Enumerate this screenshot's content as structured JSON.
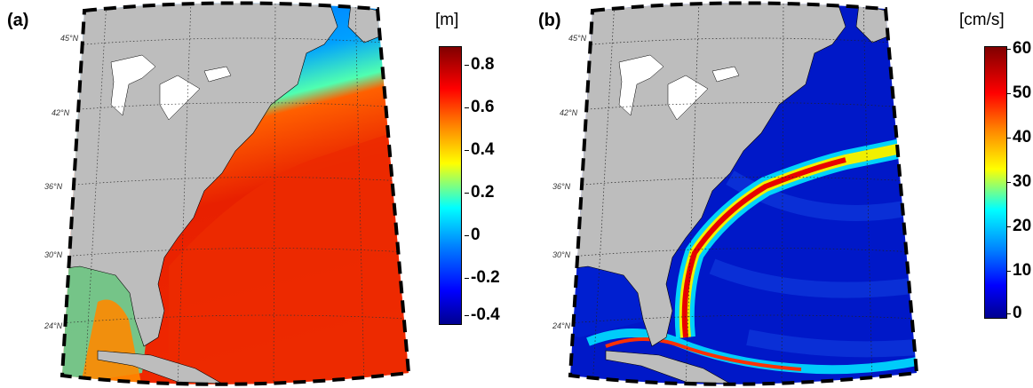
{
  "panels": [
    {
      "label": "(a)",
      "unit": "[m]",
      "colorbar_ticks": [
        "0.8",
        "0.6",
        "0.4",
        "0.2",
        "0",
        "-0.2",
        "-0.4"
      ],
      "lat_labels": [
        "45°N",
        "42°N",
        "36°N",
        "30°N",
        "24°N"
      ]
    },
    {
      "label": "(b)",
      "unit": "[cm/s]",
      "colorbar_ticks": [
        "60",
        "50",
        "40",
        "30",
        "20",
        "10",
        "0"
      ],
      "lat_labels": [
        "45°N",
        "42°N",
        "36°N",
        "30°N",
        "24°N"
      ]
    }
  ],
  "colors": {
    "land": "#bdbdbd",
    "jet_dark_blue": "#00008f",
    "jet_blue": "#0050ff",
    "jet_cyan": "#00e0ff",
    "jet_yellow": "#f0f000",
    "jet_red": "#ff1000",
    "jet_dark_red": "#800000"
  }
}
